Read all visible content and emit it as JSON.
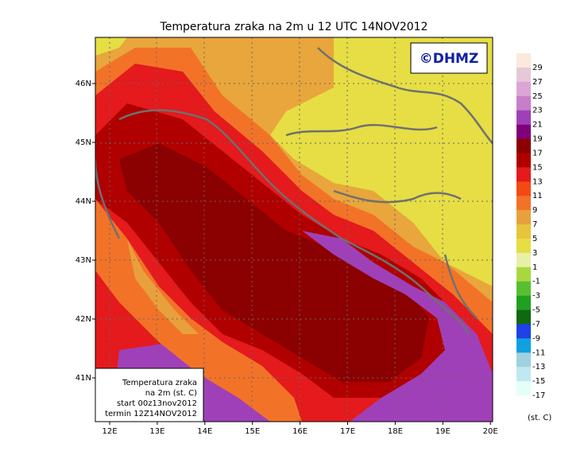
{
  "title": "Temperatura zraka na 2m u 12 UTC 14NOV2012",
  "copyright": "©DHMZ",
  "lat_labels": [
    "46N",
    "45N",
    "44N",
    "43N",
    "42N",
    "41N"
  ],
  "lon_labels": [
    "12E",
    "13E",
    "14E",
    "15E",
    "16E",
    "17E",
    "18E",
    "19E",
    "20E"
  ],
  "info_box": [
    "Temperatura zraka",
    "na 2m (st. C)",
    "start 00z13nov2012",
    "termin 12Z14NOV2012"
  ],
  "legend": {
    "labels": [
      "29",
      "27",
      "25",
      "23",
      "21",
      "19",
      "17",
      "15",
      "13",
      "11",
      "9",
      "7",
      "5",
      "3",
      "1",
      "-1",
      "-3",
      "-5",
      "-7",
      "-9",
      "-11",
      "-13",
      "-15",
      "-17"
    ],
    "colors": [
      "#fbe9dc",
      "#e6c8d8",
      "#dba6d6",
      "#c77ec8",
      "#a040b8",
      "#80007a",
      "#8b0000",
      "#b00000",
      "#e41a1c",
      "#f24a12",
      "#f27328",
      "#e8a03c",
      "#e8c43c",
      "#e6de44",
      "#e8f0a8",
      "#a8d840",
      "#58c030",
      "#20a020",
      "#106810",
      "#2040e8",
      "#10a0e0",
      "#a0d0e0",
      "#c0e8f0",
      "#e4fff8",
      "#ffffff"
    ],
    "unit": "(st. C)"
  }
}
